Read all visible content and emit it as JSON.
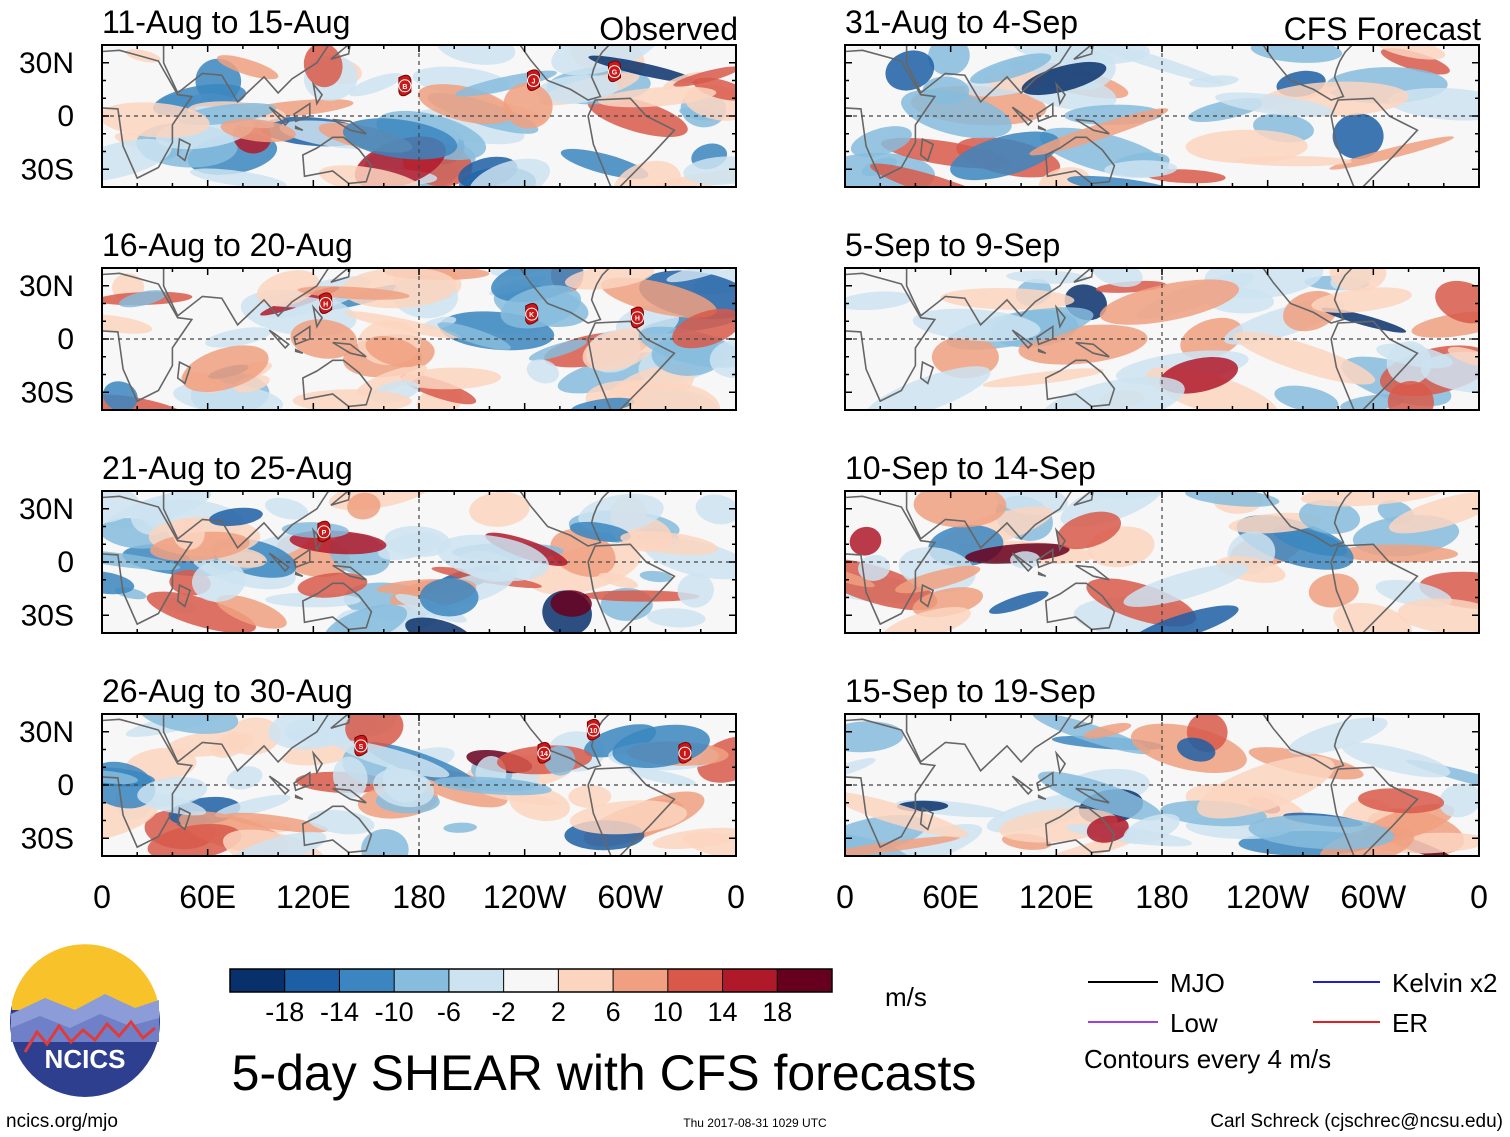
{
  "chart_data": {
    "type": "heatmap",
    "title": "5-day SHEAR with CFS forecasts",
    "column_labels": {
      "observed": "Observed",
      "forecast": "CFS Forecast"
    },
    "panels": [
      {
        "period": "11-Aug to 15-Aug",
        "column": "Observed",
        "storms": [
          {
            "name": "B",
            "lon": 172,
            "lat": 17
          },
          {
            "name": "J",
            "lon": 245,
            "lat": 20
          },
          {
            "name": "G",
            "lon": 291,
            "lat": 25
          }
        ]
      },
      {
        "period": "16-Aug to 20-Aug",
        "column": "Observed",
        "storms": [
          {
            "name": "H",
            "lon": 127,
            "lat": 20
          },
          {
            "name": "K",
            "lon": 244,
            "lat": 14
          },
          {
            "name": "H",
            "lon": 304,
            "lat": 12
          }
        ]
      },
      {
        "period": "21-Aug to 25-Aug",
        "column": "Observed",
        "storms": [
          {
            "name": "P",
            "lon": 126,
            "lat": 17
          }
        ]
      },
      {
        "period": "26-Aug to 30-Aug",
        "column": "Observed",
        "storms": [
          {
            "name": "S",
            "lon": 147,
            "lat": 22
          },
          {
            "name": "10",
            "lon": 279,
            "lat": 31
          },
          {
            "name": "14",
            "lon": 251,
            "lat": 18
          },
          {
            "name": "I",
            "lon": 331,
            "lat": 18
          }
        ]
      },
      {
        "period": "31-Aug to 4-Sep",
        "column": "CFS Forecast",
        "storms": []
      },
      {
        "period": "5-Sep to 9-Sep",
        "column": "CFS Forecast",
        "storms": []
      },
      {
        "period": "10-Sep to 14-Sep",
        "column": "CFS Forecast",
        "storms": []
      },
      {
        "period": "15-Sep to 19-Sep",
        "column": "CFS Forecast",
        "storms": []
      }
    ],
    "lat_ticks": [
      "30N",
      "0",
      "30S"
    ],
    "lon_ticks": [
      "0",
      "60E",
      "120E",
      "180",
      "120W",
      "60W",
      "0"
    ],
    "lat_range": [
      -40,
      40
    ],
    "lon_range": [
      0,
      360
    ],
    "colorbar": {
      "units": "m/s",
      "tick_labels": [
        "-18",
        "-14",
        "-10",
        "-6",
        "-2",
        "2",
        "6",
        "10",
        "14",
        "18"
      ],
      "colors": [
        "#08306b",
        "#1d5fa5",
        "#3b86c0",
        "#86bcdd",
        "#cde3f1",
        "#f7f7f7",
        "#fbd5c0",
        "#f0a080",
        "#d8594a",
        "#b0192a",
        "#67001f"
      ]
    },
    "legend": [
      {
        "label": "MJO",
        "color": "#000000"
      },
      {
        "label": "Kelvin x2",
        "color": "#1f1fd0"
      },
      {
        "label": "Low",
        "color": "#a040e0"
      },
      {
        "label": "ER",
        "color": "#e02020"
      }
    ],
    "contour_note": "Contours every 4 m/s"
  },
  "logo": {
    "text": "NCICS"
  },
  "footer": {
    "left": "ncics.org/mjo",
    "center": "Thu 2017-08-31 1029 UTC",
    "right": "Carl Schreck (cjschrec@ncsu.edu)"
  }
}
